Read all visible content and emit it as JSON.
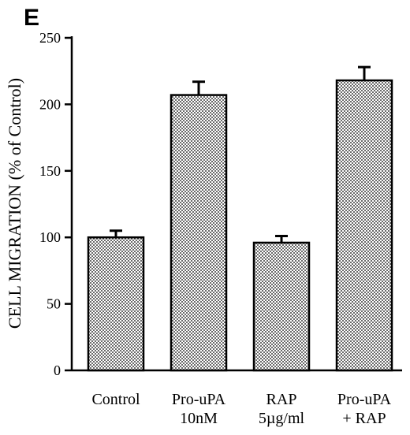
{
  "panel_label": "E",
  "chart_data": {
    "type": "bar",
    "title": "",
    "xlabel": "",
    "ylabel": "CELL MIGRATION   (% of Control)",
    "ylim": [
      0,
      250
    ],
    "yticks": [
      0,
      50,
      100,
      150,
      200,
      250
    ],
    "grid": false,
    "categories": [
      [
        "Control"
      ],
      [
        "Pro-uPA",
        "10nM"
      ],
      [
        "RAP",
        "5µg/ml"
      ],
      [
        "Pro-uPA",
        "+ RAP"
      ]
    ],
    "values": [
      100,
      207,
      96,
      218
    ],
    "errors": [
      5,
      10,
      5,
      10
    ],
    "bar_fill": "dotted-gray"
  }
}
